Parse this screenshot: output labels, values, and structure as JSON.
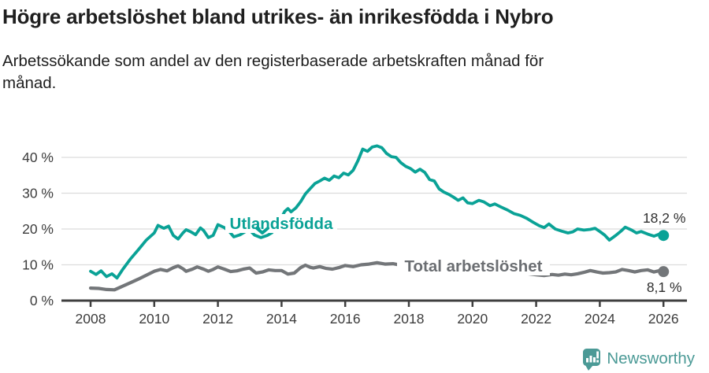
{
  "header": {
    "title": "Högre arbetslöshet bland utrikes- än inrikesfödda i Nybro",
    "subtitle_lines": [
      "Arbetssökande som andel av den registerbaserade arbetskraften månad för",
      "månad."
    ]
  },
  "chart_data": {
    "type": "line",
    "title": "Högre arbetslöshet bland utrikes- än inrikesfödda i Nybro",
    "subtitle": "Arbetssökande som andel av den registerbaserade arbetskraften månad för månad.",
    "x_axis": {
      "tick_labels": [
        "2008",
        "2010",
        "2012",
        "2014",
        "2016",
        "2018",
        "2020",
        "2022",
        "2024",
        "2026"
      ],
      "tick_values": [
        2008,
        2010,
        2012,
        2014,
        2016,
        2018,
        2020,
        2022,
        2024,
        2026
      ],
      "range": [
        2007.1,
        2026.7
      ],
      "grid": false
    },
    "y_axis": {
      "tick_labels": [
        "0 %",
        "10 %",
        "20 %",
        "30 %",
        "40 %"
      ],
      "tick_values": [
        0,
        10,
        20,
        30,
        40
      ],
      "range": [
        0,
        46
      ],
      "unit": "%",
      "grid": true
    },
    "series": [
      {
        "name": "Utlandsfödda",
        "slug": "utlandsfodda",
        "color": "#0aa296",
        "end_label": "18,2 %",
        "end_value": 18.2,
        "points": [
          [
            2008.0,
            8.2
          ],
          [
            2008.17,
            7.3
          ],
          [
            2008.33,
            8.3
          ],
          [
            2008.5,
            6.7
          ],
          [
            2008.67,
            7.5
          ],
          [
            2008.83,
            6.3
          ],
          [
            2009.0,
            8.6
          ],
          [
            2009.25,
            11.6
          ],
          [
            2009.5,
            14.2
          ],
          [
            2009.75,
            16.9
          ],
          [
            2010.0,
            18.9
          ],
          [
            2010.12,
            21.0
          ],
          [
            2010.3,
            20.2
          ],
          [
            2010.45,
            20.8
          ],
          [
            2010.6,
            18.2
          ],
          [
            2010.75,
            17.2
          ],
          [
            2010.9,
            18.9
          ],
          [
            2011.0,
            19.8
          ],
          [
            2011.15,
            19.2
          ],
          [
            2011.3,
            18.4
          ],
          [
            2011.45,
            20.3
          ],
          [
            2011.55,
            19.6
          ],
          [
            2011.7,
            17.6
          ],
          [
            2011.85,
            18.2
          ],
          [
            2012.0,
            21.2
          ],
          [
            2012.2,
            20.4
          ],
          [
            2012.35,
            19.4
          ],
          [
            2012.5,
            17.8
          ],
          [
            2012.7,
            18.4
          ],
          [
            2012.85,
            19.2
          ],
          [
            2013.0,
            19.7
          ],
          [
            2013.15,
            18.3
          ],
          [
            2013.35,
            17.6
          ],
          [
            2013.55,
            18.2
          ],
          [
            2013.7,
            19.0
          ],
          [
            2013.85,
            21.0
          ],
          [
            2014.0,
            23.2
          ],
          [
            2014.1,
            24.9
          ],
          [
            2014.2,
            25.7
          ],
          [
            2014.3,
            24.8
          ],
          [
            2014.45,
            25.9
          ],
          [
            2014.6,
            27.6
          ],
          [
            2014.75,
            29.8
          ],
          [
            2014.9,
            31.3
          ],
          [
            2015.05,
            32.7
          ],
          [
            2015.2,
            33.4
          ],
          [
            2015.35,
            34.2
          ],
          [
            2015.5,
            33.6
          ],
          [
            2015.65,
            34.8
          ],
          [
            2015.8,
            34.3
          ],
          [
            2015.95,
            35.6
          ],
          [
            2016.1,
            35.1
          ],
          [
            2016.25,
            36.4
          ],
          [
            2016.4,
            39.1
          ],
          [
            2016.55,
            42.3
          ],
          [
            2016.7,
            41.7
          ],
          [
            2016.85,
            42.9
          ],
          [
            2017.0,
            43.2
          ],
          [
            2017.15,
            42.7
          ],
          [
            2017.3,
            41.1
          ],
          [
            2017.45,
            40.2
          ],
          [
            2017.6,
            40.0
          ],
          [
            2017.75,
            38.5
          ],
          [
            2017.9,
            37.5
          ],
          [
            2018.05,
            36.9
          ],
          [
            2018.2,
            35.9
          ],
          [
            2018.35,
            36.7
          ],
          [
            2018.5,
            35.8
          ],
          [
            2018.65,
            33.8
          ],
          [
            2018.8,
            33.4
          ],
          [
            2018.95,
            31.2
          ],
          [
            2019.1,
            30.3
          ],
          [
            2019.25,
            29.7
          ],
          [
            2019.4,
            28.9
          ],
          [
            2019.55,
            28.0
          ],
          [
            2019.7,
            28.7
          ],
          [
            2019.85,
            27.3
          ],
          [
            2020.0,
            27.1
          ],
          [
            2020.2,
            28.0
          ],
          [
            2020.35,
            27.6
          ],
          [
            2020.55,
            26.5
          ],
          [
            2020.7,
            27.0
          ],
          [
            2020.9,
            26.1
          ],
          [
            2021.1,
            25.3
          ],
          [
            2021.3,
            24.3
          ],
          [
            2021.5,
            23.8
          ],
          [
            2021.7,
            23.0
          ],
          [
            2021.9,
            21.9
          ],
          [
            2022.1,
            20.9
          ],
          [
            2022.25,
            20.4
          ],
          [
            2022.4,
            21.4
          ],
          [
            2022.6,
            20.0
          ],
          [
            2022.8,
            19.4
          ],
          [
            2023.0,
            18.9
          ],
          [
            2023.15,
            19.2
          ],
          [
            2023.3,
            20.0
          ],
          [
            2023.5,
            19.7
          ],
          [
            2023.7,
            19.9
          ],
          [
            2023.85,
            20.2
          ],
          [
            2024.0,
            19.3
          ],
          [
            2024.15,
            18.3
          ],
          [
            2024.3,
            16.9
          ],
          [
            2024.5,
            18.2
          ],
          [
            2024.65,
            19.3
          ],
          [
            2024.8,
            20.5
          ],
          [
            2025.0,
            19.7
          ],
          [
            2025.15,
            18.9
          ],
          [
            2025.3,
            19.3
          ],
          [
            2025.5,
            18.6
          ],
          [
            2025.7,
            18.0
          ],
          [
            2025.85,
            18.5
          ],
          [
            2026.0,
            18.2
          ]
        ]
      },
      {
        "name": "Total arbetslöshet",
        "slug": "total-arbetsloshet",
        "color": "#737679",
        "label_color": "#6b6e72",
        "end_label": "8,1 %",
        "end_value": 8.1,
        "points": [
          [
            2008.0,
            3.5
          ],
          [
            2008.25,
            3.4
          ],
          [
            2008.5,
            3.1
          ],
          [
            2008.75,
            3.0
          ],
          [
            2009.0,
            4.0
          ],
          [
            2009.25,
            5.0
          ],
          [
            2009.5,
            6.0
          ],
          [
            2009.75,
            7.1
          ],
          [
            2010.0,
            8.2
          ],
          [
            2010.2,
            8.7
          ],
          [
            2010.4,
            8.3
          ],
          [
            2010.6,
            9.2
          ],
          [
            2010.75,
            9.7
          ],
          [
            2010.9,
            8.9
          ],
          [
            2011.0,
            8.2
          ],
          [
            2011.2,
            8.8
          ],
          [
            2011.35,
            9.4
          ],
          [
            2011.55,
            8.8
          ],
          [
            2011.7,
            8.2
          ],
          [
            2011.85,
            8.7
          ],
          [
            2012.0,
            9.4
          ],
          [
            2012.2,
            8.8
          ],
          [
            2012.4,
            8.1
          ],
          [
            2012.6,
            8.3
          ],
          [
            2012.8,
            8.8
          ],
          [
            2013.0,
            9.1
          ],
          [
            2013.2,
            7.7
          ],
          [
            2013.4,
            8.0
          ],
          [
            2013.6,
            8.6
          ],
          [
            2013.8,
            8.4
          ],
          [
            2014.0,
            8.4
          ],
          [
            2014.2,
            7.4
          ],
          [
            2014.4,
            7.7
          ],
          [
            2014.6,
            9.2
          ],
          [
            2014.75,
            9.9
          ],
          [
            2014.9,
            9.3
          ],
          [
            2015.0,
            9.1
          ],
          [
            2015.2,
            9.5
          ],
          [
            2015.4,
            9.0
          ],
          [
            2015.6,
            8.8
          ],
          [
            2015.8,
            9.2
          ],
          [
            2016.0,
            9.8
          ],
          [
            2016.25,
            9.5
          ],
          [
            2016.5,
            10.0
          ],
          [
            2016.75,
            10.2
          ],
          [
            2017.0,
            10.6
          ],
          [
            2017.25,
            10.2
          ],
          [
            2017.5,
            10.3
          ],
          [
            2017.75,
            9.9
          ],
          [
            2018.0,
            9.6
          ],
          [
            2018.25,
            9.2
          ],
          [
            2018.5,
            9.0
          ],
          [
            2018.75,
            8.7
          ],
          [
            2019.0,
            8.5
          ],
          [
            2019.25,
            8.3
          ],
          [
            2019.5,
            8.2
          ],
          [
            2019.75,
            8.4
          ],
          [
            2020.0,
            8.6
          ],
          [
            2020.25,
            9.2
          ],
          [
            2020.5,
            9.4
          ],
          [
            2020.75,
            9.0
          ],
          [
            2021.0,
            8.6
          ],
          [
            2021.25,
            8.2
          ],
          [
            2021.5,
            7.9
          ],
          [
            2021.75,
            7.5
          ],
          [
            2022.0,
            7.2
          ],
          [
            2022.25,
            7.0
          ],
          [
            2022.5,
            7.3
          ],
          [
            2022.7,
            7.1
          ],
          [
            2022.9,
            7.4
          ],
          [
            2023.1,
            7.2
          ],
          [
            2023.3,
            7.5
          ],
          [
            2023.5,
            7.9
          ],
          [
            2023.7,
            8.4
          ],
          [
            2023.9,
            8.0
          ],
          [
            2024.1,
            7.7
          ],
          [
            2024.3,
            7.8
          ],
          [
            2024.5,
            8.0
          ],
          [
            2024.7,
            8.7
          ],
          [
            2024.9,
            8.4
          ],
          [
            2025.1,
            8.0
          ],
          [
            2025.3,
            8.4
          ],
          [
            2025.5,
            8.6
          ],
          [
            2025.7,
            8.0
          ],
          [
            2025.85,
            8.3
          ],
          [
            2026.0,
            8.1
          ]
        ]
      }
    ],
    "legend_position": "inline-labels",
    "colors": {
      "accent_teal": "#0aa296",
      "neutral_gray": "#737679"
    }
  },
  "footer": {
    "brand": "Newsworthy",
    "brand_color": "#4b9a96",
    "logo_icon": "newsworthy-speech-bubble-barchart-icon"
  }
}
